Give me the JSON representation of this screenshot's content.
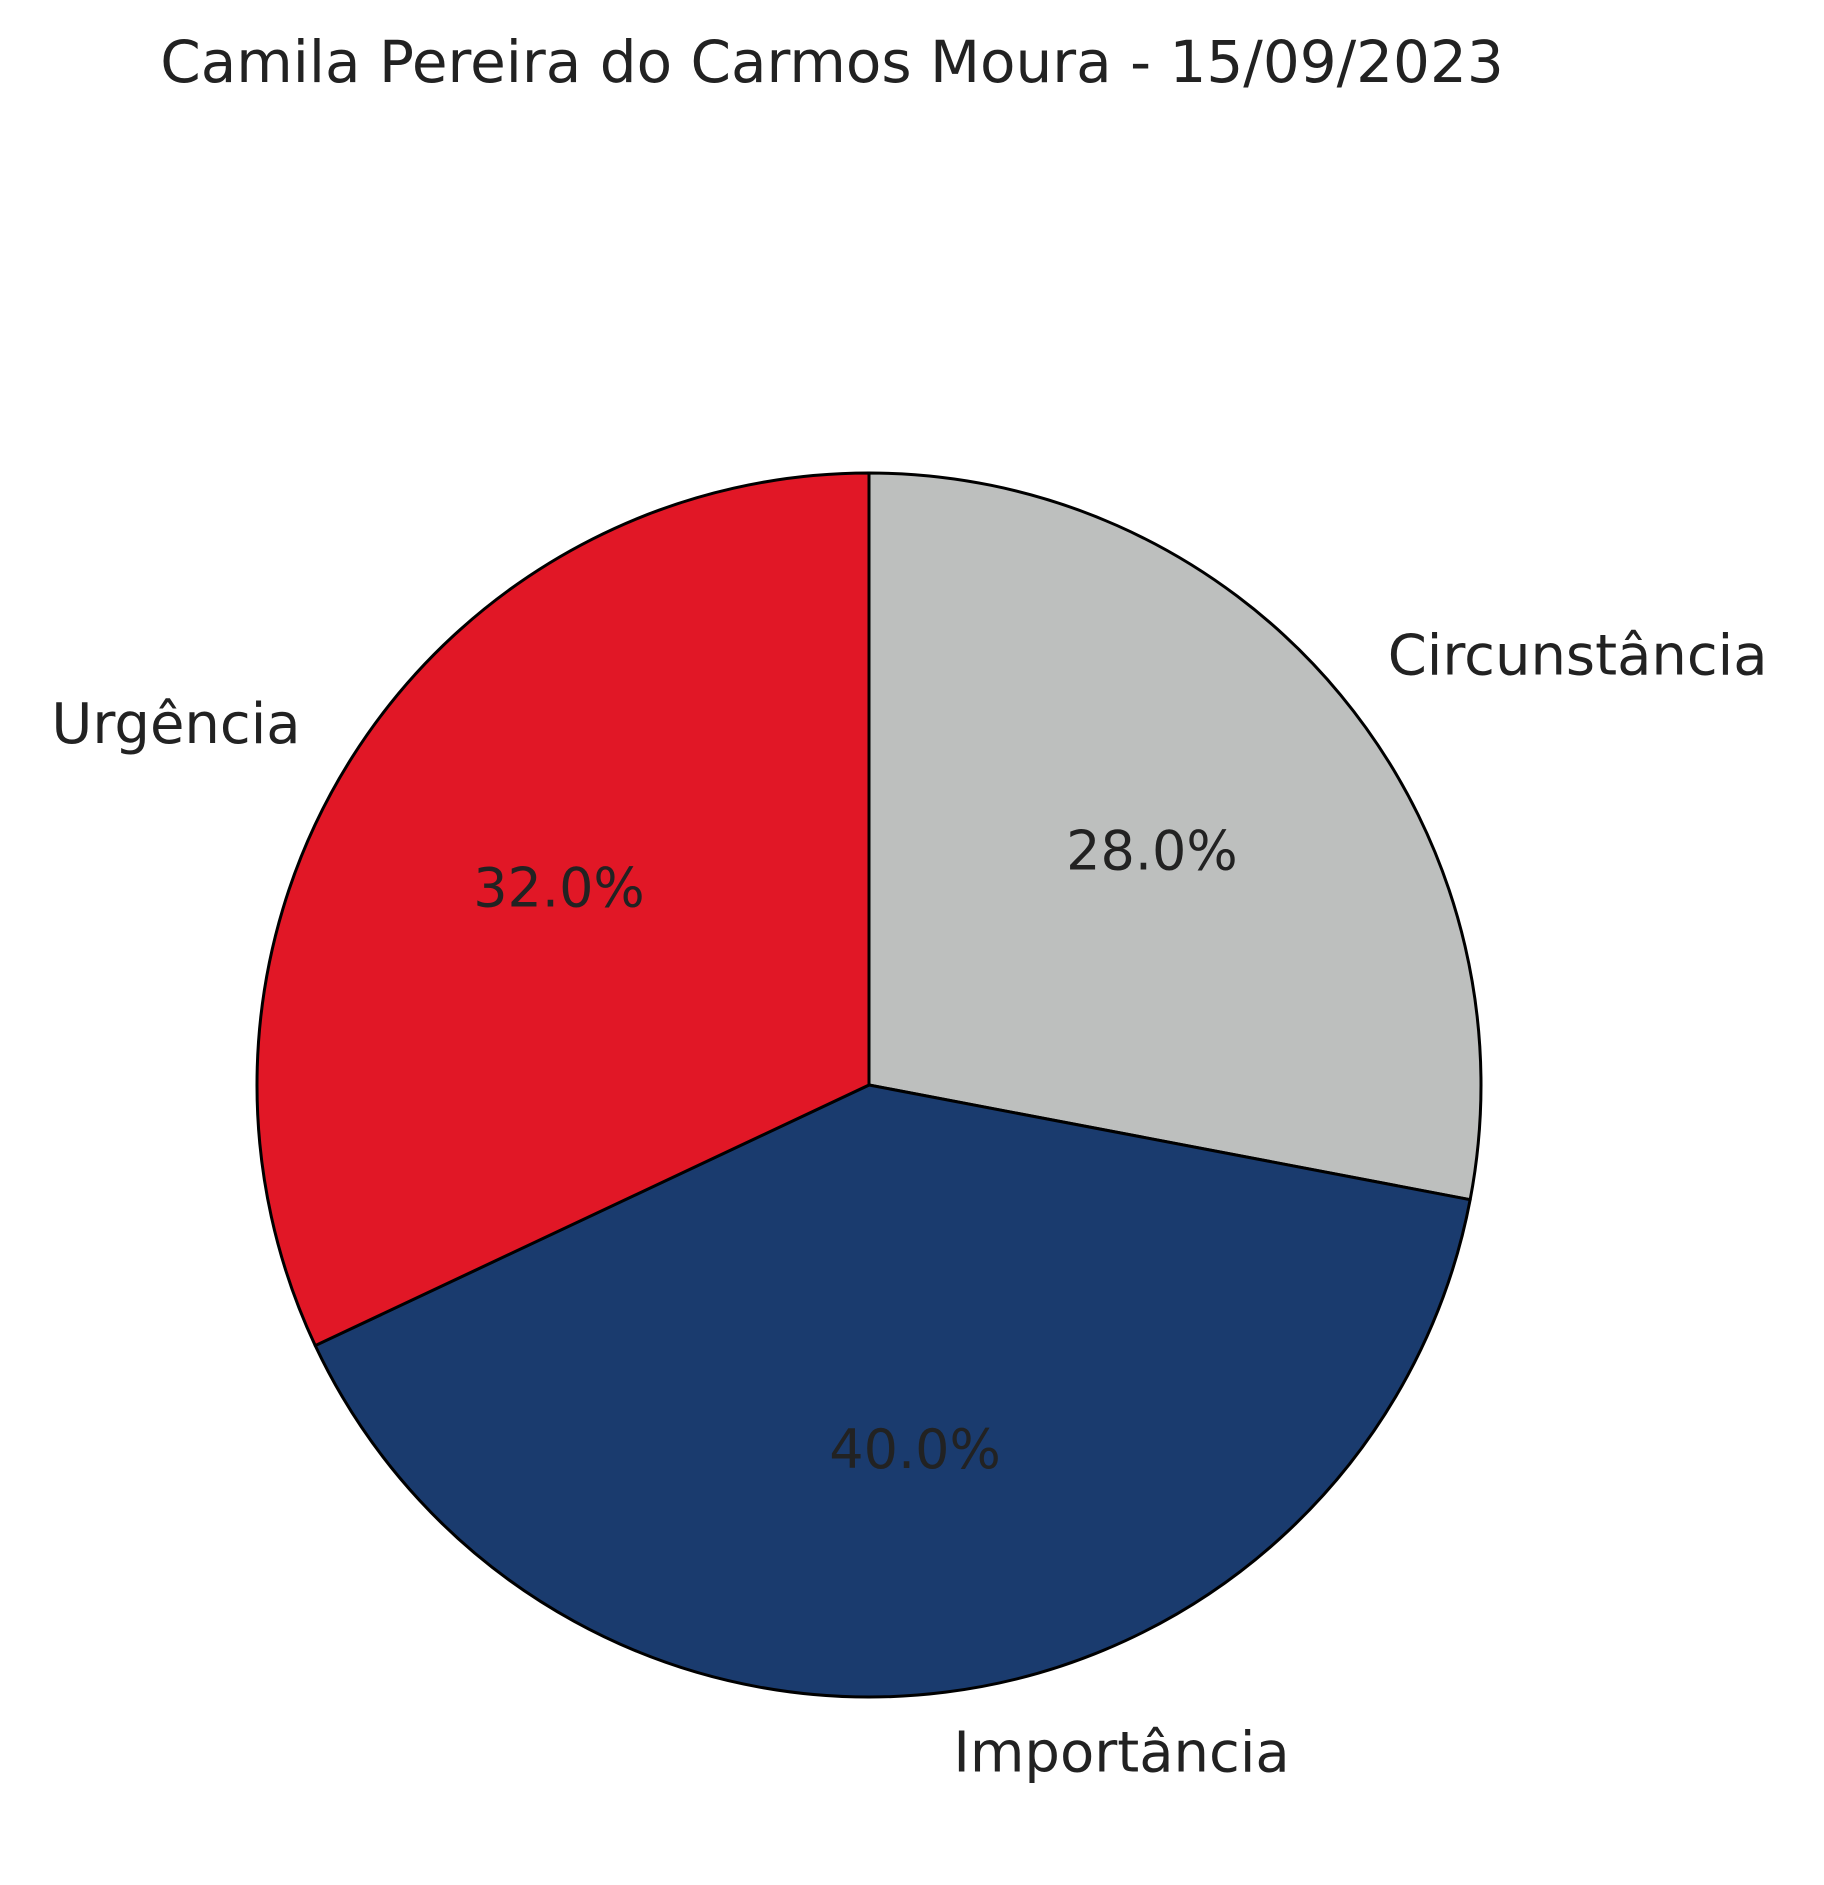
{
  "chart_data": {
    "type": "pie",
    "title": "Camila Pereira do Carmos Moura - 15/09/2023",
    "categories": [
      "Circunstância",
      "Importância",
      "Urgência"
    ],
    "values": [
      28.0,
      40.0,
      32.0
    ],
    "value_labels": [
      "28.0%",
      "40.0%",
      "32.0%"
    ],
    "colors": [
      "#bdbfbe",
      "#1a3b6e",
      "#e11726"
    ],
    "start_angle": "12 o'clock",
    "direction": "clockwise",
    "legend": "none",
    "label_placement": "outside"
  }
}
